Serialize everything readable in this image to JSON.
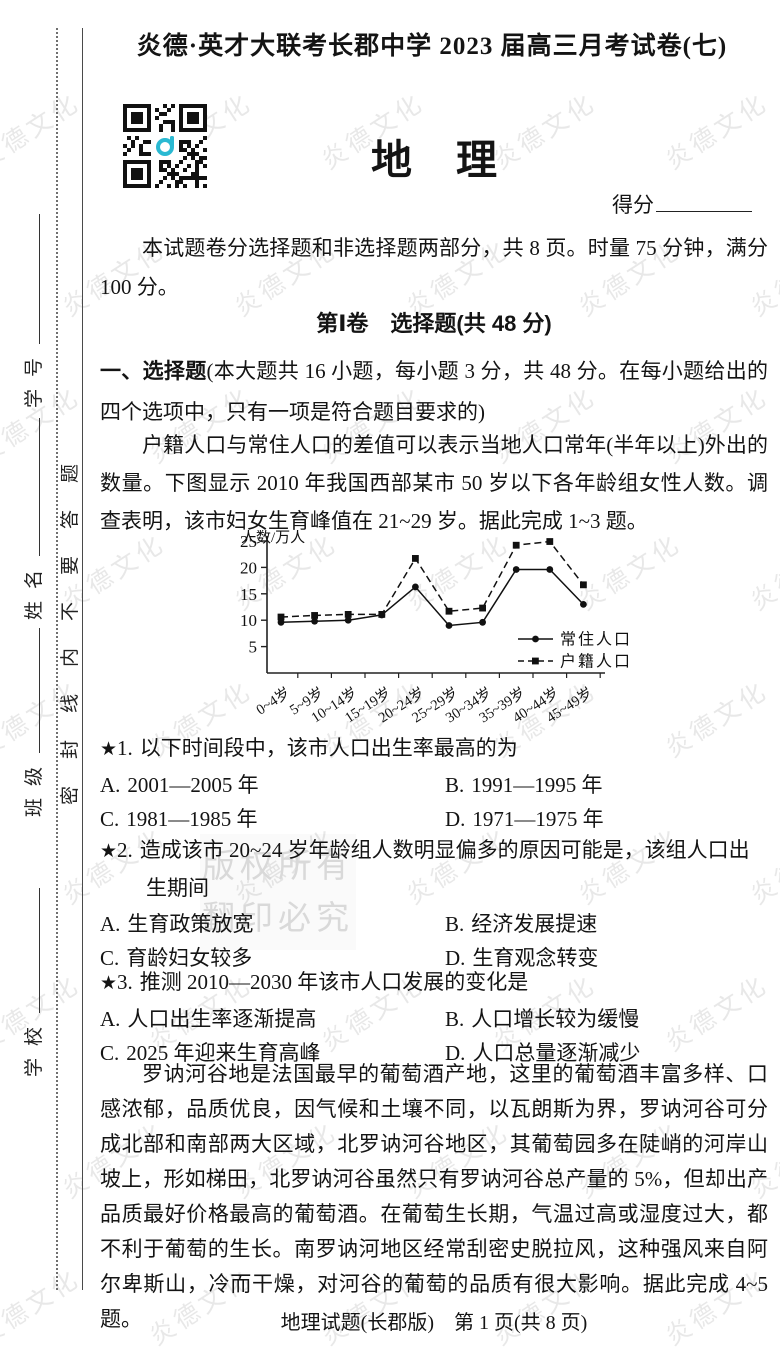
{
  "page": {
    "exam_title": "炎德·英才大联考长郡中学 2023 届高三月考试卷(七)",
    "subject": "地理",
    "score_label": "得分",
    "intro": "本试题卷分选择题和非选择题两部分，共 8 页。时量 75 分钟，满分 100 分。",
    "footer": "地理试题(长郡版)　第 1 页(共 8 页)"
  },
  "sidebar": {
    "seal_text": "密封线内不要答题",
    "fields": [
      {
        "label": "学校"
      },
      {
        "label": "班级"
      },
      {
        "label": "姓名"
      },
      {
        "label": "学号"
      }
    ]
  },
  "watermark": {
    "text": "炎德文化",
    "big_line1": "版权所有",
    "big_line2": "翻印必究"
  },
  "section1": {
    "heading": "第Ⅰ卷　选择题(共 48 分)"
  },
  "instructions": {
    "lead": "一、选择题",
    "rest": "(本大题共 16 小题，每小题 3 分，共 48 分。在每小题给出的四个选项中，只有一项是符合题目要求的)"
  },
  "stimulus1": "户籍人口与常住人口的差值可以表示当地人口常年(半年以上)外出的数量。下图显示 2010 年我国西部某市 50 岁以下各年龄组女性人数。调查表明，该市妇女生育峰值在 21~29 岁。据此完成 1~3 题。",
  "stimulus2": "罗讷河谷地是法国最早的葡萄酒产地，这里的葡萄酒丰富多样、口感浓郁，品质优良，因气候和土壤不同，以瓦朗斯为界，罗讷河谷可分成北部和南部两大区域，北罗讷河谷地区，其葡萄园多在陡峭的河岸山坡上，形如梯田，北罗讷河谷虽然只有罗讷河谷总产量的 5%，但却出产品质最好价格最高的葡萄酒。在葡萄生长期，气温过高或湿度过大，都不利于葡萄的生长。南罗讷河地区经常刮密史脱拉风，这种强风来自阿尔卑斯山，冷而干燥，对河谷的葡萄的品质有很大影响。据此完成 4~5 题。",
  "chart_data": {
    "type": "line",
    "title": "2010年我国西部某市50岁以下各年龄组女性人数",
    "ylabel": "人数/万人",
    "xlabel": "",
    "categories": [
      "0~4岁",
      "5~9岁",
      "10~14岁",
      "15~19岁",
      "20~24岁",
      "25~29岁",
      "30~34岁",
      "35~39岁",
      "40~44岁",
      "45~49岁"
    ],
    "series": [
      {
        "name": "常住人口",
        "style": "solid",
        "marker": "circle",
        "values": [
          9.6,
          9.8,
          10.0,
          11.0,
          16.3,
          9.0,
          9.6,
          19.6,
          19.6,
          13.0
        ]
      },
      {
        "name": "户籍人口",
        "style": "dashed",
        "marker": "square",
        "values": [
          10.6,
          10.9,
          11.1,
          11.1,
          21.7,
          11.7,
          12.3,
          24.2,
          24.9,
          16.7
        ]
      }
    ],
    "ylim": [
      0,
      25
    ],
    "yticks": [
      5,
      10,
      15,
      20,
      25
    ],
    "grid": false,
    "legend_position": "inside-lower-right"
  },
  "questions": [
    {
      "star": "★",
      "number": "1.",
      "stem": "以下时间段中，该市人口出生率最高的为",
      "options": [
        {
          "key": "A.",
          "text": "2001—2005 年"
        },
        {
          "key": "B.",
          "text": "1991—1995 年"
        },
        {
          "key": "C.",
          "text": "1981—1985 年"
        },
        {
          "key": "D.",
          "text": "1971—1975 年"
        }
      ]
    },
    {
      "star": "★",
      "number": "2.",
      "stem": "造成该市 20~24 岁年龄组人数明显偏多的原因可能是，该组人口出生期间",
      "options": [
        {
          "key": "A.",
          "text": "生育政策放宽"
        },
        {
          "key": "B.",
          "text": "经济发展提速"
        },
        {
          "key": "C.",
          "text": "育龄妇女较多"
        },
        {
          "key": "D.",
          "text": "生育观念转变"
        }
      ]
    },
    {
      "star": "★",
      "number": "3.",
      "stem": "推测 2010—2030 年该市人口发展的变化是",
      "options": [
        {
          "key": "A.",
          "text": "人口出生率逐渐提高"
        },
        {
          "key": "B.",
          "text": "人口增长较为缓慢"
        },
        {
          "key": "C.",
          "text": "2025 年迎来生育高峰"
        },
        {
          "key": "D.",
          "text": "人口总量逐渐减少"
        }
      ]
    }
  ]
}
